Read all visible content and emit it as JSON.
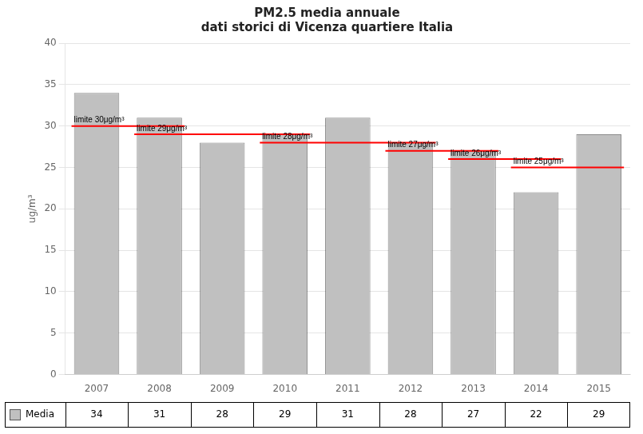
{
  "chart_data": {
    "type": "bar",
    "title": "PM2.5 media annuale",
    "subtitle": "dati storici di Vicenza quartiere Italia",
    "ylabel": "ug/m³",
    "categories": [
      2007,
      2008,
      2009,
      2010,
      2011,
      2012,
      2013,
      2014,
      2015
    ],
    "values": [
      34,
      31,
      28,
      29,
      31,
      28,
      27,
      22,
      29
    ],
    "color": "#c0c0c0",
    "ylim": [
      0,
      40
    ],
    "yticks": [
      0,
      5,
      10,
      15,
      20,
      25,
      30,
      35,
      40
    ],
    "grid": true,
    "annotations": [
      {
        "label": "limite 30μg/m³",
        "y": 30,
        "from": 2007,
        "to": 2008,
        "color": "red"
      },
      {
        "label": "limite 29μg/m³",
        "y": 29,
        "from": 2008,
        "to": 2010,
        "color": "red"
      },
      {
        "label": "limite 28μg/m³",
        "y": 28,
        "from": 2010,
        "to": 2012,
        "color": "red"
      },
      {
        "label": "limite 27μg/m³",
        "y": 27,
        "from": 2012,
        "to": 2013,
        "color": "red"
      },
      {
        "label": "limite 26μg/m³",
        "y": 26,
        "from": 2013,
        "to": 2014,
        "color": "red"
      },
      {
        "label": "limite 25μg/m³",
        "y": 25,
        "from": 2014,
        "to": 2015,
        "color": "red"
      }
    ],
    "table": {
      "label": "Media",
      "values": [
        34,
        31,
        28,
        29,
        31,
        28,
        27,
        22,
        29
      ]
    }
  }
}
